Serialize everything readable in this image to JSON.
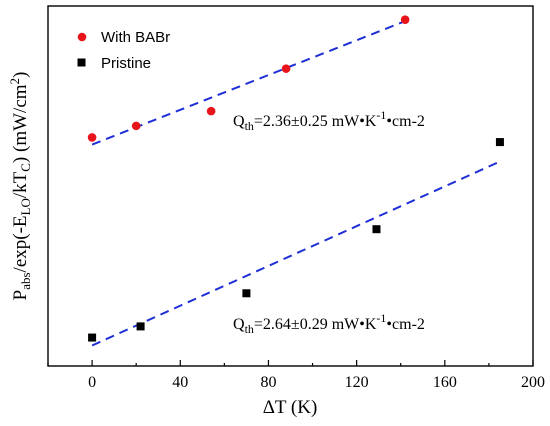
{
  "chart_data": {
    "type": "scatter",
    "xlabel": "ΔT (K)",
    "ylabel": "P_abs/exp(-E_LO/kT_C) (mW/cm²)",
    "xlim": [
      -20,
      200
    ],
    "xticks": [
      0,
      40,
      80,
      120,
      160,
      200
    ],
    "ylim": [
      0,
      1
    ],
    "y_tick_labels": "none",
    "grid": false,
    "legend_position": "top-left",
    "series": [
      {
        "name": "With BABr",
        "marker": "circle",
        "color": "#e8141c",
        "x": [
          0,
          20,
          54,
          88,
          142
        ],
        "y": [
          0.635,
          0.667,
          0.708,
          0.826,
          0.962
        ],
        "fit": {
          "x": [
            0,
            142
          ],
          "y": [
            0.615,
            0.958
          ]
        },
        "annotation": {
          "base": "Q",
          "sub": "th",
          "text1": "=2.36±0.25 mW•K",
          "sup1": "-1",
          "text2": "•cm-2"
        }
      },
      {
        "name": "Pristine",
        "marker": "square",
        "color": "#000000",
        "x": [
          0,
          22,
          70,
          129,
          185
        ],
        "y": [
          0.079,
          0.11,
          0.202,
          0.38,
          0.622
        ],
        "fit": {
          "x": [
            0,
            185
          ],
          "y": [
            0.057,
            0.568
          ]
        },
        "annotation": {
          "base": "Q",
          "sub": "th",
          "text1": "=2.64±0.29 mW•K",
          "sup1": "-1",
          "text2": "•cm-2"
        }
      }
    ]
  }
}
